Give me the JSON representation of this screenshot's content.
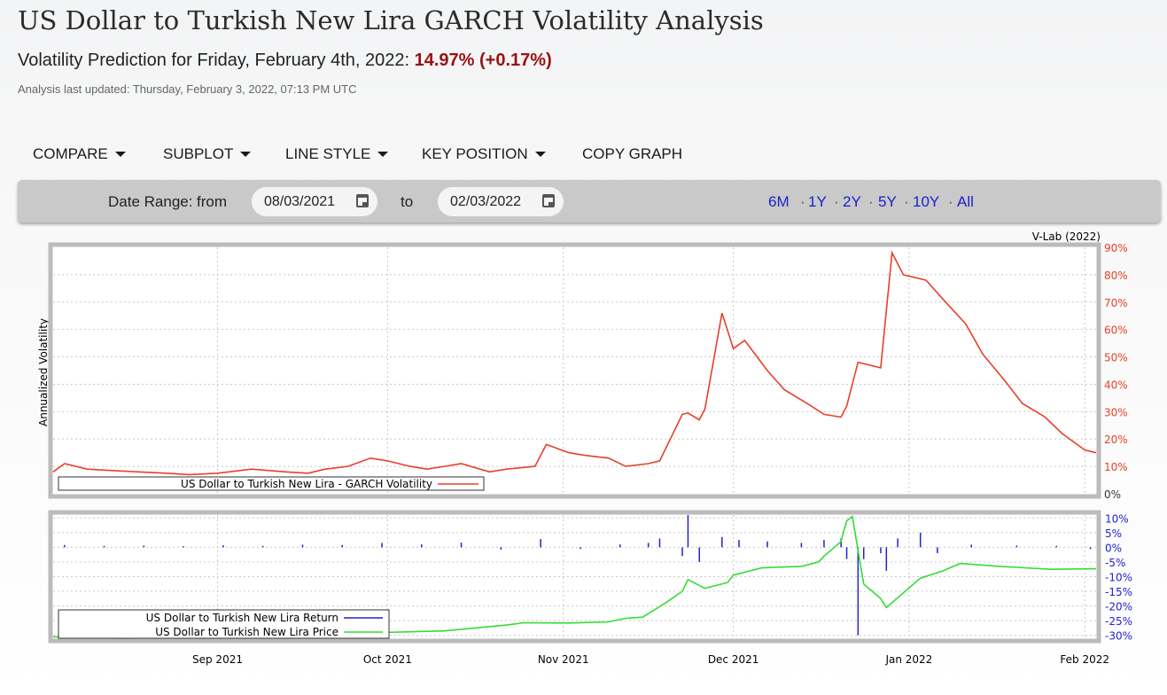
{
  "header": {
    "title": "US Dollar to Turkish New Lira GARCH Volatility Analysis",
    "prediction_label": "Volatility Prediction for Friday, February 4th, 2022:",
    "prediction_value": "14.97% (+0.17%)",
    "updated": "Analysis last updated: Thursday, February 3, 2022, 07:13 PM UTC"
  },
  "menu": {
    "compare": "COMPARE",
    "subplot": "SUBPLOT",
    "line_style": "LINE STYLE",
    "key_position": "KEY POSITION",
    "copy_graph": "COPY GRAPH"
  },
  "range": {
    "label": "Date Range:",
    "from_label": "from",
    "from": "08/03/2021",
    "to_label": "to",
    "to": "02/03/2022",
    "quick": [
      "6M",
      "1Y",
      "2Y",
      "5Y",
      "10Y",
      "All"
    ],
    "separator": "·"
  },
  "colors": {
    "volatility": "#e8402a",
    "returns": "#2222cc",
    "price": "#33dd33",
    "title_value": "#9b1111",
    "link": "#1b22c9"
  },
  "chart_data": [
    {
      "type": "line",
      "credit": "V-Lab (2022)",
      "ylabel": "Annualized Volatility",
      "yticks": [
        "90%",
        "80%",
        "70%",
        "60%",
        "50%",
        "40%",
        "30%",
        "20%",
        "10%",
        "0%"
      ],
      "ylim": [
        0,
        90
      ],
      "xticks": [
        "Sep 2021",
        "Oct 2021",
        "Nov 2021",
        "Dec 2021",
        "Jan 2022",
        "Feb 2022"
      ],
      "xtick_dates": [
        "2021-09-01",
        "2021-10-01",
        "2021-11-01",
        "2021-12-01",
        "2022-01-01",
        "2022-02-01"
      ],
      "legend_position": "bottom-left",
      "grid": true,
      "series": [
        {
          "name": "US Dollar to Turkish New Lira - GARCH Volatility",
          "x": [
            "2021-08-03",
            "2021-08-05",
            "2021-08-09",
            "2021-08-13",
            "2021-08-18",
            "2021-08-23",
            "2021-08-27",
            "2021-09-01",
            "2021-09-07",
            "2021-09-13",
            "2021-09-17",
            "2021-09-20",
            "2021-09-24",
            "2021-09-28",
            "2021-10-01",
            "2021-10-05",
            "2021-10-08",
            "2021-10-14",
            "2021-10-19",
            "2021-10-22",
            "2021-10-27",
            "2021-10-29",
            "2021-11-02",
            "2021-11-05",
            "2021-11-09",
            "2021-11-12",
            "2021-11-16",
            "2021-11-18",
            "2021-11-22",
            "2021-11-23",
            "2021-11-25",
            "2021-11-26",
            "2021-11-29",
            "2021-12-01",
            "2021-12-03",
            "2021-12-07",
            "2021-12-10",
            "2021-12-14",
            "2021-12-17",
            "2021-12-20",
            "2021-12-21",
            "2021-12-23",
            "2021-12-27",
            "2021-12-29",
            "2021-12-31",
            "2022-01-04",
            "2022-01-07",
            "2022-01-11",
            "2022-01-14",
            "2022-01-18",
            "2022-01-21",
            "2022-01-25",
            "2022-01-28",
            "2022-02-01",
            "2022-02-03"
          ],
          "values": [
            8,
            11,
            9,
            8.5,
            8,
            7.5,
            7,
            7.5,
            9,
            8,
            7.5,
            9,
            10,
            13,
            12,
            10,
            9,
            11,
            8,
            9,
            10,
            18,
            15,
            14,
            13,
            10,
            11,
            12,
            29,
            29.5,
            27,
            31,
            66,
            53,
            56,
            45,
            38,
            33,
            29,
            28,
            32,
            48,
            46,
            88,
            80,
            78,
            71,
            62,
            51,
            41,
            33,
            28,
            22,
            16,
            15
          ]
        }
      ]
    },
    {
      "type": "line",
      "yticks": [
        "10%",
        "5%",
        "0%",
        "-5%",
        "-10%",
        "-15%",
        "-20%",
        "-25%",
        "-30%"
      ],
      "ylim": [
        -31,
        11
      ],
      "legend_position": "bottom-left",
      "grid": true,
      "series": [
        {
          "name": "US Dollar to Turkish New Lira Return",
          "x": [
            "2021-08-05",
            "2021-08-12",
            "2021-08-19",
            "2021-08-26",
            "2021-09-02",
            "2021-09-09",
            "2021-09-16",
            "2021-09-23",
            "2021-09-30",
            "2021-10-07",
            "2021-10-14",
            "2021-10-21",
            "2021-10-28",
            "2021-11-04",
            "2021-11-11",
            "2021-11-16",
            "2021-11-18",
            "2021-11-22",
            "2021-11-23",
            "2021-11-25",
            "2021-11-29",
            "2021-12-02",
            "2021-12-07",
            "2021-12-13",
            "2021-12-17",
            "2021-12-20",
            "2021-12-21",
            "2021-12-23",
            "2021-12-24",
            "2021-12-27",
            "2021-12-28",
            "2021-12-30",
            "2022-01-03",
            "2022-01-06",
            "2022-01-12",
            "2022-01-20",
            "2022-01-27",
            "2022-02-02"
          ],
          "values": [
            0.8,
            0.5,
            0.6,
            0.4,
            0.7,
            0.5,
            0.9,
            0.8,
            1.5,
            1,
            1.6,
            -0.8,
            2.8,
            -0.6,
            1,
            1.5,
            3,
            -3,
            11,
            -5,
            3.5,
            2.5,
            2,
            1.5,
            2.5,
            3,
            -4,
            -30,
            -4,
            -2,
            -8,
            3,
            5,
            -2,
            0.9,
            0.6,
            0.5,
            -0.6
          ]
        },
        {
          "name": "US Dollar to Turkish New Lira Price",
          "x": [
            "2021-08-03",
            "2021-08-16",
            "2021-08-30",
            "2021-09-13",
            "2021-09-27",
            "2021-10-11",
            "2021-10-18",
            "2021-10-22",
            "2021-10-25",
            "2021-11-02",
            "2021-11-09",
            "2021-11-12",
            "2021-11-15",
            "2021-11-19",
            "2021-11-22",
            "2021-11-23",
            "2021-11-26",
            "2021-11-30",
            "2021-12-01",
            "2021-12-06",
            "2021-12-13",
            "2021-12-16",
            "2021-12-17",
            "2021-12-20",
            "2021-12-21",
            "2021-12-22",
            "2021-12-24",
            "2021-12-27",
            "2021-12-28",
            "2022-01-03",
            "2022-01-07",
            "2022-01-10",
            "2022-01-17",
            "2022-01-26",
            "2022-02-03"
          ],
          "values": [
            -30.5,
            -31,
            -30,
            -29.5,
            -29.2,
            -28.5,
            -27.2,
            -26.5,
            -25.7,
            -25.8,
            -25.4,
            -24.2,
            -23.8,
            -19,
            -15,
            -11,
            -14,
            -12,
            -9.5,
            -7,
            -6.5,
            -5,
            -3,
            2,
            9,
            10.5,
            -12.5,
            -17.5,
            -20.5,
            -10.5,
            -8,
            -5.5,
            -6.5,
            -7.5,
            -7.3
          ]
        }
      ]
    }
  ]
}
